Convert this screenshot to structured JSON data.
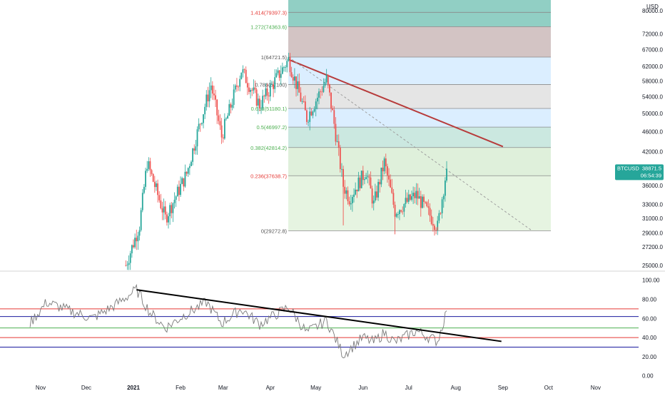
{
  "symbol": "BTCUSD",
  "currency": "USD",
  "last_price": "38871.5",
  "countdown": "06:54:39",
  "colors": {
    "up": "#26a69a",
    "down": "#ef5350",
    "trendline_price": "#b73b3b",
    "trendline_rsi": "#000000",
    "rsi_line": "#7a7a7a",
    "fib_label_green": "#4caf50",
    "fib_label_red": "#e53935"
  },
  "chart_data": [
    {
      "type": "candlestick",
      "title": "",
      "x_axis_labels": [
        "Nov",
        "Dec",
        "2021",
        "Feb",
        "Mar",
        "Apr",
        "May",
        "Jun",
        "Jul",
        "Aug",
        "Sep",
        "Oct",
        "Nov"
      ],
      "y_axis_labels": [
        "80000.0",
        "72000.0",
        "67000.0",
        "62000.0",
        "58000.0",
        "54000.0",
        "50000.0",
        "46000.0",
        "42000.0",
        "36000.0",
        "33000.0",
        "31000.0",
        "29000.0",
        "27200.0",
        "25000.0"
      ],
      "y_scale": "log",
      "ylim": [
        24500,
        84000
      ],
      "price_anchors": [
        {
          "date": "2020-12-27",
          "price": 25000
        },
        {
          "date": "2021-01-05",
          "price": 30000
        },
        {
          "date": "2021-01-10",
          "price": 40000
        },
        {
          "date": "2021-01-22",
          "price": 31000
        },
        {
          "date": "2021-02-05",
          "price": 38000
        },
        {
          "date": "2021-02-13",
          "price": 47000
        },
        {
          "date": "2021-02-21",
          "price": 57000
        },
        {
          "date": "2021-02-28",
          "price": 45000
        },
        {
          "date": "2021-03-13",
          "price": 61000
        },
        {
          "date": "2021-03-25",
          "price": 52000
        },
        {
          "date": "2021-04-13",
          "price": 64000
        },
        {
          "date": "2021-04-25",
          "price": 49000
        },
        {
          "date": "2021-05-08",
          "price": 58500
        },
        {
          "date": "2021-05-12",
          "price": 50000
        },
        {
          "date": "2021-05-19",
          "price": 36000
        },
        {
          "date": "2021-05-23",
          "price": 34000
        },
        {
          "date": "2021-06-03",
          "price": 38500
        },
        {
          "date": "2021-06-08",
          "price": 33000
        },
        {
          "date": "2021-06-15",
          "price": 40000
        },
        {
          "date": "2021-06-22",
          "price": 32000
        },
        {
          "date": "2021-07-06",
          "price": 34500
        },
        {
          "date": "2021-07-20",
          "price": 29800
        },
        {
          "date": "2021-07-26",
          "price": 38871.5
        }
      ],
      "fib_levels": [
        {
          "ratio": "1.414",
          "label": "1.414(79397.3)",
          "price": 79397.3,
          "fill": "#91cfc4",
          "label_color": "#e53935"
        },
        {
          "ratio": "1.272",
          "label": "1.272(74363.6)",
          "price": 74363.6,
          "fill": "#d3c4c4",
          "label_color": "#4caf50"
        },
        {
          "ratio": "1",
          "label": "1(64721.5)",
          "price": 64721.5,
          "fill": "#dbeeff",
          "label_color": "#555555"
        },
        {
          "ratio": "0.786",
          "label": "0.786(57100)",
          "price": 57100,
          "fill": "#e5e5e5",
          "label_color": "#555555"
        },
        {
          "ratio": "0.618",
          "label": "0.618(51180.1)",
          "price": 51180.1,
          "fill": "#dbeeff",
          "label_color": "#4caf50"
        },
        {
          "ratio": "0.5",
          "label": "0.5(46997.2)",
          "price": 46997.2,
          "fill": "#cbe8e0",
          "label_color": "#4caf50"
        },
        {
          "ratio": "0.382",
          "label": "0.382(42814.2)",
          "price": 42814.2,
          "fill": "#dff0db",
          "label_color": "#4caf50"
        },
        {
          "ratio": "0.236",
          "label": "0.236(37638.7)",
          "price": 37638.7,
          "fill": "#e6f4e1",
          "label_color": "#e53935"
        },
        {
          "ratio": "0",
          "label": "0(29272.8)",
          "price": 29272.8,
          "fill": "#fcd8d8",
          "label_color": "#555555"
        }
      ],
      "trendlines": [
        {
          "name": "price-trendline",
          "from": {
            "date": "2021-04-13",
            "price": 64000
          },
          "to": {
            "date": "2021-09-01",
            "price": 43000
          }
        },
        {
          "name": "dashed-projection",
          "from": {
            "date": "2021-04-13",
            "price": 64721.5
          },
          "to": {
            "date": "2021-09-20",
            "price": 29300
          }
        }
      ]
    },
    {
      "type": "line",
      "title": "",
      "y_axis_labels": [
        "100.00",
        "80.00",
        "60.00",
        "40.00",
        "20.00",
        "0.00"
      ],
      "ylim": [
        -4,
        108
      ],
      "horizontal_lines": [
        {
          "value": 70,
          "color": "#e53935"
        },
        {
          "value": 62,
          "color": "#1a1a9e"
        },
        {
          "value": 50,
          "color": "#4caf50"
        },
        {
          "value": 40,
          "color": "#e53935"
        },
        {
          "value": 30,
          "color": "#1a1a9e"
        }
      ],
      "rsi_anchors": [
        {
          "date": "2020-10-25",
          "value": 55
        },
        {
          "date": "2020-11-05",
          "value": 77
        },
        {
          "date": "2020-11-20",
          "value": 68
        },
        {
          "date": "2020-12-05",
          "value": 60
        },
        {
          "date": "2020-12-20",
          "value": 74
        },
        {
          "date": "2021-01-03",
          "value": 90
        },
        {
          "date": "2021-01-12",
          "value": 66
        },
        {
          "date": "2021-01-22",
          "value": 50
        },
        {
          "date": "2021-02-05",
          "value": 65
        },
        {
          "date": "2021-02-18",
          "value": 77
        },
        {
          "date": "2021-02-28",
          "value": 55
        },
        {
          "date": "2021-03-13",
          "value": 70
        },
        {
          "date": "2021-03-25",
          "value": 54
        },
        {
          "date": "2021-04-13",
          "value": 72
        },
        {
          "date": "2021-04-25",
          "value": 45
        },
        {
          "date": "2021-05-08",
          "value": 58
        },
        {
          "date": "2021-05-19",
          "value": 22
        },
        {
          "date": "2021-06-01",
          "value": 40
        },
        {
          "date": "2021-06-08",
          "value": 35
        },
        {
          "date": "2021-06-15",
          "value": 45
        },
        {
          "date": "2021-06-22",
          "value": 35
        },
        {
          "date": "2021-07-06",
          "value": 47
        },
        {
          "date": "2021-07-20",
          "value": 36
        },
        {
          "date": "2021-07-26",
          "value": 68
        }
      ],
      "trendline": {
        "from": {
          "date": "2021-01-03",
          "value": 90
        },
        "to": {
          "date": "2021-08-31",
          "value": 36
        }
      }
    }
  ]
}
